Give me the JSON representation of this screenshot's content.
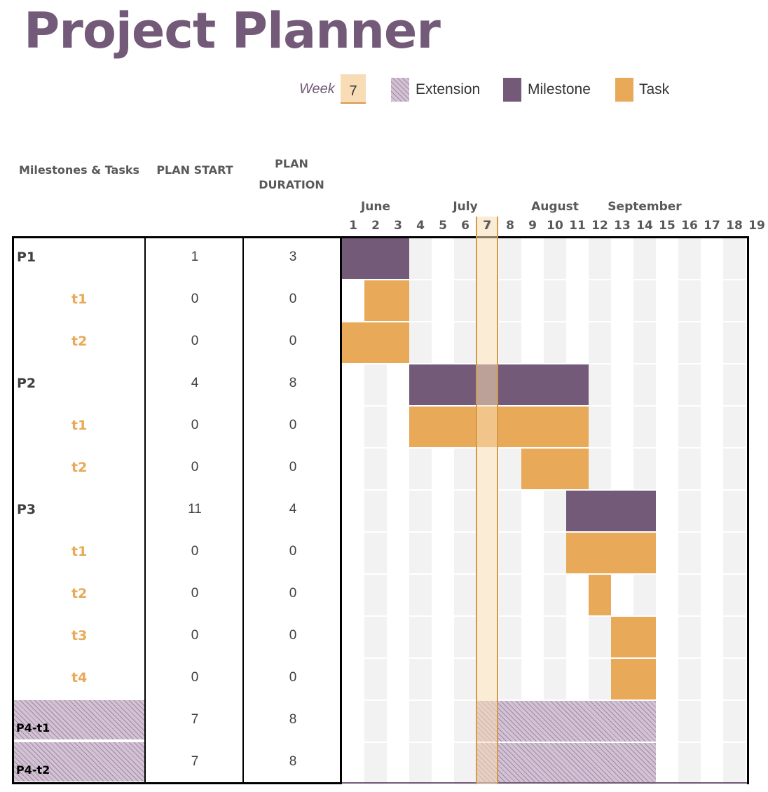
{
  "title": "Project Planner",
  "legend": {
    "week_label": "Week",
    "week_value": "7",
    "extension_label": "Extension",
    "milestone_label": "Milestone",
    "task_label": "Task"
  },
  "colors": {
    "milestone": "#735a78",
    "task": "#e8a958",
    "current_week": "#f8dcb5",
    "stripe": "#f2f2f2"
  },
  "columns": {
    "name": "Milestones & Tasks",
    "plan_start": "PLAN START",
    "plan_duration_1": "PLAN",
    "plan_duration_2": "DURATION"
  },
  "months": [
    {
      "label": "June",
      "week": 2
    },
    {
      "label": "July",
      "week": 6
    },
    {
      "label": "August",
      "week": 10
    },
    {
      "label": "September",
      "week": 14
    }
  ],
  "weeks": [
    "1",
    "2",
    "3",
    "4",
    "5",
    "6",
    "7",
    "8",
    "9",
    "10",
    "11",
    "12",
    "13",
    "14",
    "15",
    "16",
    "17",
    "18",
    "19"
  ],
  "current_week": 7,
  "rows": [
    {
      "name": "P1",
      "kind": "milestone",
      "start": "1",
      "duration": "3",
      "bar_start": 1,
      "bar_end": 3
    },
    {
      "name": "t1",
      "kind": "task",
      "start": "0",
      "duration": "0",
      "bar_start": 2,
      "bar_end": 3
    },
    {
      "name": "t2",
      "kind": "task",
      "start": "0",
      "duration": "0",
      "bar_start": 1,
      "bar_end": 3
    },
    {
      "name": "P2",
      "kind": "milestone",
      "start": "4",
      "duration": "8",
      "bar_start": 4,
      "bar_end": 11
    },
    {
      "name": "t1",
      "kind": "task",
      "start": "0",
      "duration": "0",
      "bar_start": 4,
      "bar_end": 11
    },
    {
      "name": "t2",
      "kind": "task",
      "start": "0",
      "duration": "0",
      "bar_start": 9,
      "bar_end": 11
    },
    {
      "name": "P3",
      "kind": "milestone",
      "start": "11",
      "duration": "4",
      "bar_start": 11,
      "bar_end": 14
    },
    {
      "name": "t1",
      "kind": "task",
      "start": "0",
      "duration": "0",
      "bar_start": 11,
      "bar_end": 14
    },
    {
      "name": "t2",
      "kind": "task",
      "start": "0",
      "duration": "0",
      "bar_start": 12,
      "bar_end": 12
    },
    {
      "name": "t3",
      "kind": "task",
      "start": "0",
      "duration": "0",
      "bar_start": 13,
      "bar_end": 14
    },
    {
      "name": "t4",
      "kind": "task",
      "start": "0",
      "duration": "0",
      "bar_start": 13,
      "bar_end": 14
    },
    {
      "name": "P4-t1",
      "kind": "extension",
      "start": "7",
      "duration": "8",
      "bar_start": 7,
      "bar_end": 14
    },
    {
      "name": "P4-t2",
      "kind": "extension",
      "start": "7",
      "duration": "8",
      "bar_start": 7,
      "bar_end": 14
    }
  ]
}
